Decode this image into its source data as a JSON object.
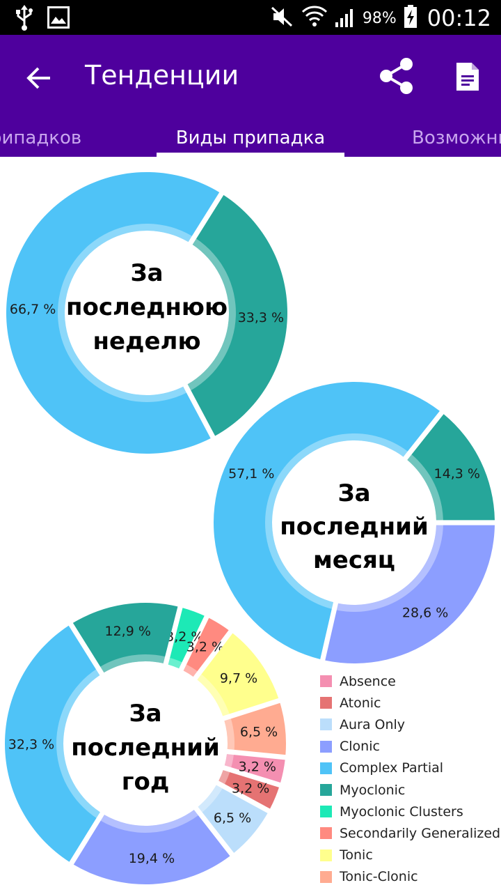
{
  "status_bar": {
    "battery_percent": "98%",
    "time": "00:12",
    "icons": [
      "usb-icon",
      "image-icon",
      "mute-icon",
      "wifi-icon",
      "signal-icon",
      "battery-charging-icon"
    ]
  },
  "app_bar": {
    "title": "Тенденции",
    "background_color": "#4e009d",
    "actions": [
      "back-arrow-icon",
      "share-icon",
      "document-icon"
    ]
  },
  "tabs": [
    {
      "label": "рипадков",
      "active": false
    },
    {
      "label": "Виды припадка",
      "active": true
    },
    {
      "label": "Возможны",
      "active": false
    }
  ],
  "legend": [
    {
      "label": "Absence",
      "color": "#f48fb1"
    },
    {
      "label": "Atonic",
      "color": "#e57373"
    },
    {
      "label": "Aura Only",
      "color": "#bbdefb"
    },
    {
      "label": "Clonic",
      "color": "#8c9eff"
    },
    {
      "label": "Complex Partial",
      "color": "#4fc3f7"
    },
    {
      "label": "Myoclonic",
      "color": "#26a69a"
    },
    {
      "label": "Myoclonic Clusters",
      "color": "#1de9b6"
    },
    {
      "label": "Secondarily Generalized",
      "color": "#ff8a80"
    },
    {
      "label": "Tonic",
      "color": "#ffff8d"
    },
    {
      "label": "Tonic-Clonic",
      "color": "#ffab91"
    }
  ],
  "chart_data": [
    {
      "type": "pie",
      "title": "За последнюю неделю",
      "slices": [
        {
          "category": "Myoclonic",
          "value": 33.3,
          "label": "33,3 %"
        },
        {
          "category": "Complex Partial",
          "value": 66.7,
          "label": "66,7 %"
        }
      ]
    },
    {
      "type": "pie",
      "title": "За последний месяц",
      "slices": [
        {
          "category": "Myoclonic",
          "value": 14.3,
          "label": "14,3 %"
        },
        {
          "category": "Clonic",
          "value": 28.6,
          "label": "28,6 %"
        },
        {
          "category": "Complex Partial",
          "value": 57.1,
          "label": "57,1 %"
        }
      ]
    },
    {
      "type": "pie",
      "title": "За последний год",
      "slices": [
        {
          "category": "Myoclonic Clusters",
          "value": 3.2,
          "label": "3,2 %"
        },
        {
          "category": "Secondarily Generalized",
          "value": 3.2,
          "label": "3,2 %"
        },
        {
          "category": "Tonic",
          "value": 9.7,
          "label": "9,7 %"
        },
        {
          "category": "Tonic-Clonic",
          "value": 6.5,
          "label": "6,5 %"
        },
        {
          "category": "Absence",
          "value": 3.2,
          "label": "3,2 %"
        },
        {
          "category": "Atonic",
          "value": 3.2,
          "label": "3,2 %"
        },
        {
          "category": "Aura Only",
          "value": 6.5,
          "label": "6,5 %"
        },
        {
          "category": "Clonic",
          "value": 19.4,
          "label": "19,4 %"
        },
        {
          "category": "Complex Partial",
          "value": 32.3,
          "label": "32,3 %"
        },
        {
          "category": "Myoclonic",
          "value": 12.9,
          "label": "12,9 %"
        }
      ]
    }
  ]
}
